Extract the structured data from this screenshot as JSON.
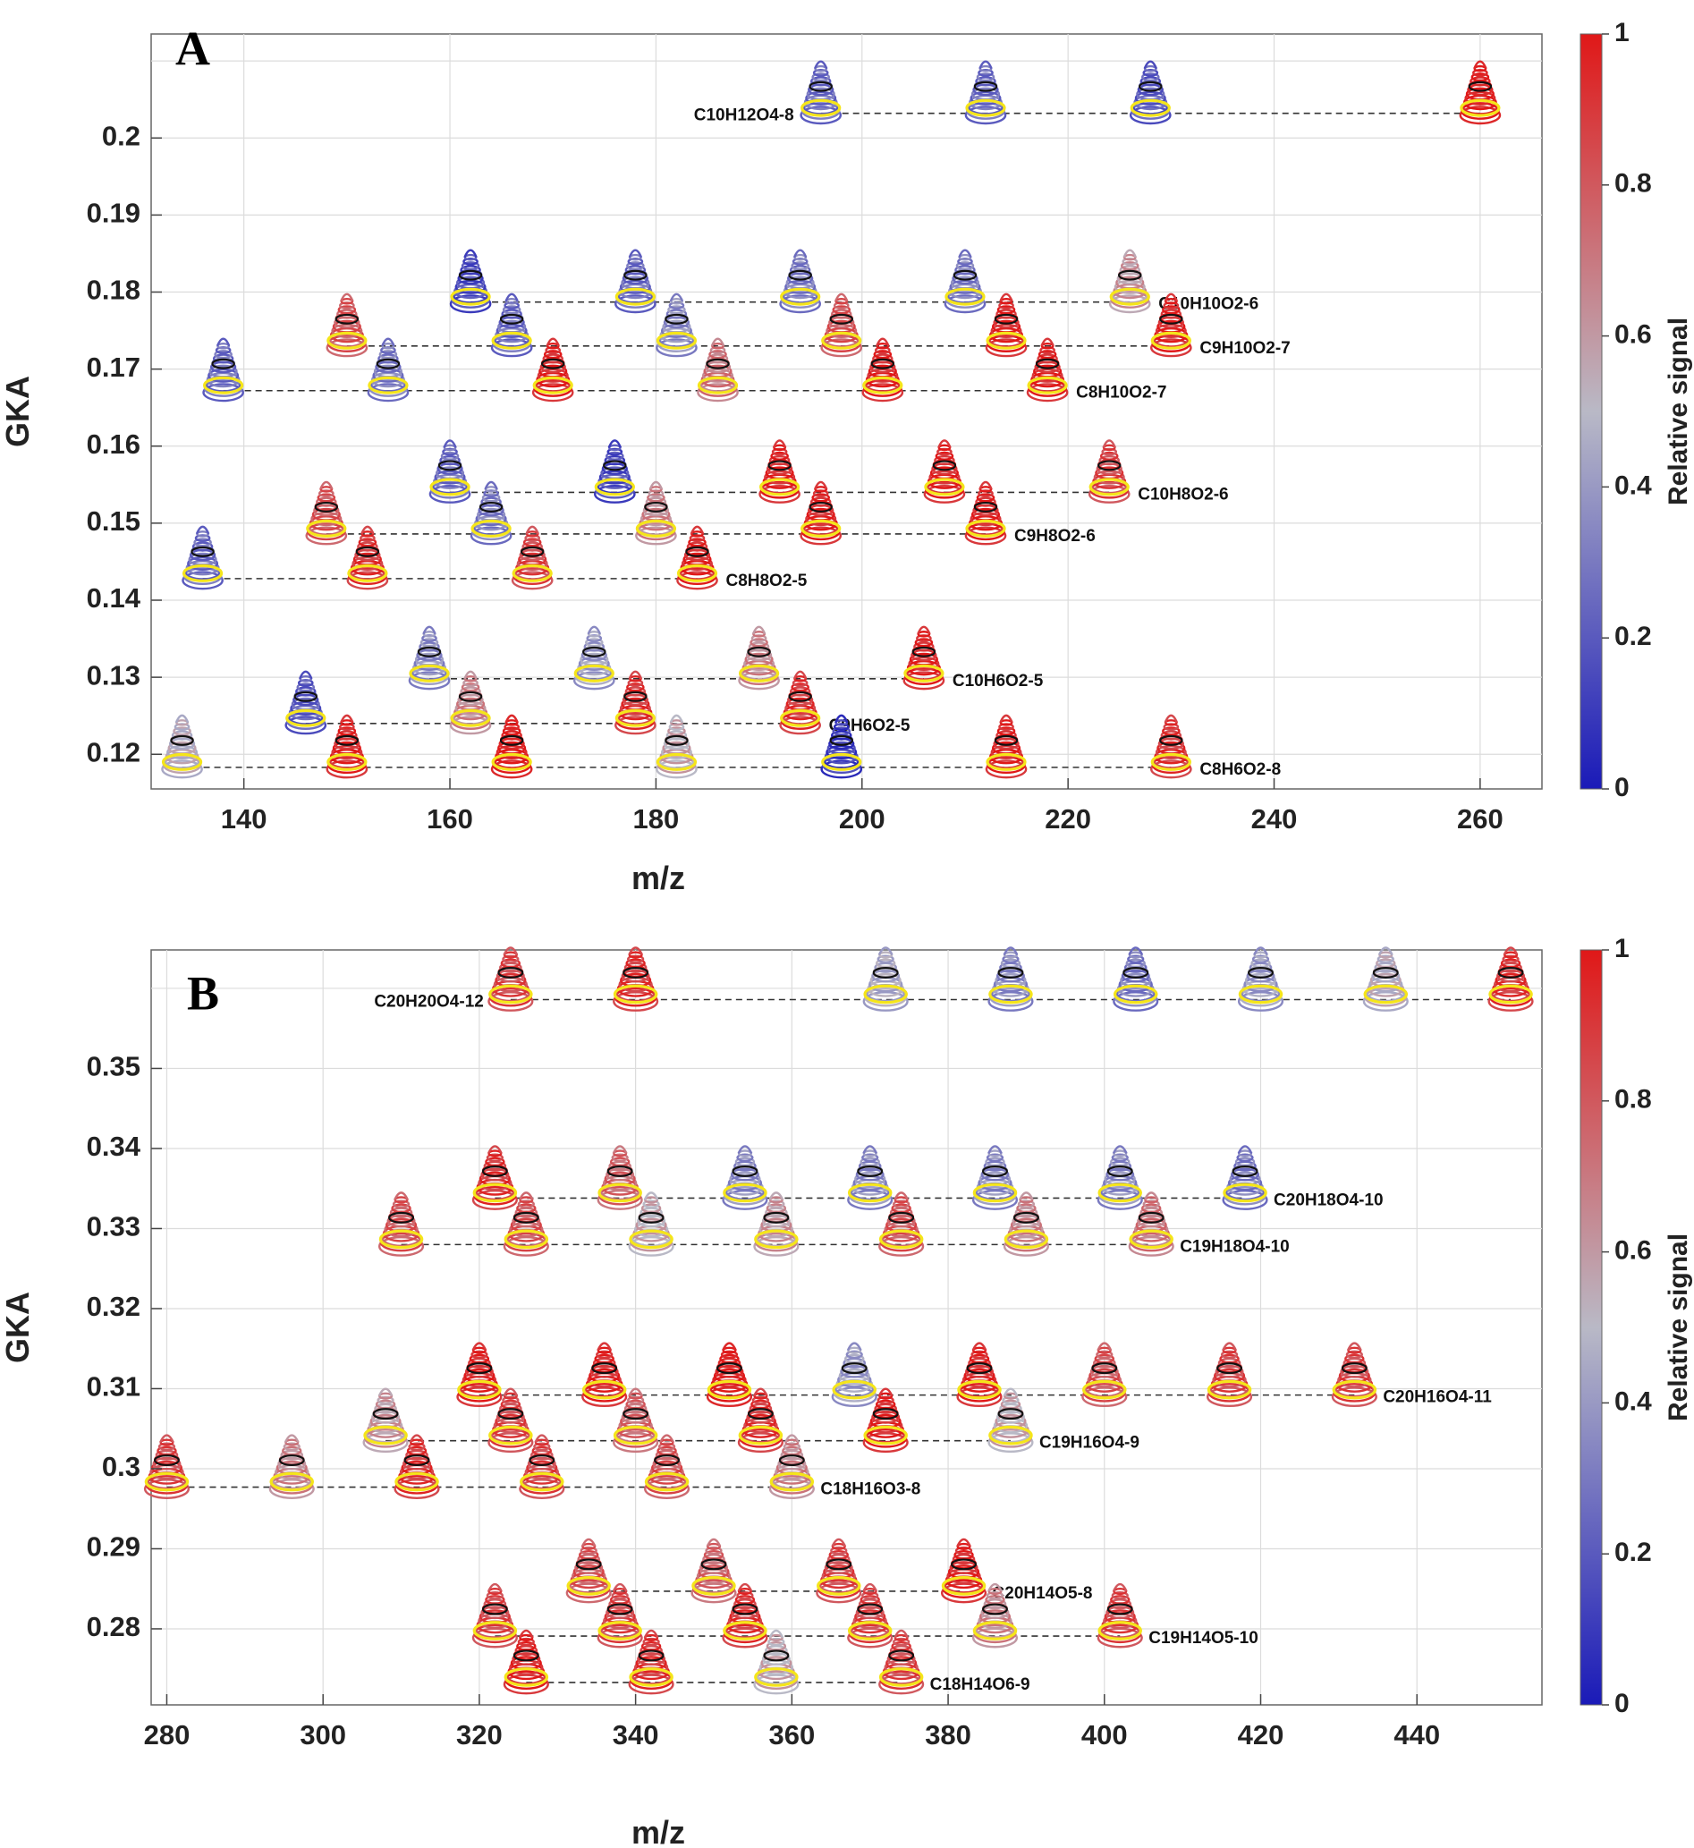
{
  "chart_data": [
    {
      "panel": "A",
      "type": "scatter",
      "xlabel": "m/z",
      "ylabel": "GKA",
      "xlim": [
        131,
        266
      ],
      "ylim": [
        0.1155,
        0.2135
      ],
      "x_ticks": [
        "140",
        "160",
        "180",
        "200",
        "220",
        "240",
        "260"
      ],
      "y_ticks": [
        "0.12",
        "0.13",
        "0.14",
        "0.15",
        "0.16",
        "0.17",
        "0.18",
        "0.19",
        "0.2"
      ],
      "grid": true,
      "colorbar": {
        "title": "Relative signal",
        "ticks": [
          "0",
          "0.2",
          "0.4",
          "0.6",
          "0.8",
          "1"
        ],
        "range": [
          0,
          1
        ],
        "colors": [
          "#1a1ab8",
          "#b9b9c6",
          "#e01818"
        ]
      },
      "series": [
        {
          "name": "C10H12O4-8",
          "y": 0.2032,
          "label_side": "left",
          "x": [
            196,
            212,
            228,
            260
          ],
          "signal": [
            0.2,
            0.2,
            0.15,
            0.95
          ]
        },
        {
          "name": "C10H10O2-6",
          "y": 0.1787,
          "label_side": "right",
          "x": [
            162,
            178,
            194,
            210,
            226
          ],
          "signal": [
            0.1,
            0.2,
            0.25,
            0.25,
            0.55
          ]
        },
        {
          "name": "C9H10O2-7",
          "y": 0.173,
          "label_side": "right",
          "x": [
            150,
            166,
            182,
            198,
            214,
            230
          ],
          "signal": [
            0.75,
            0.2,
            0.3,
            0.75,
            0.9,
            0.9
          ]
        },
        {
          "name": "C8H10O2-7",
          "y": 0.1672,
          "label_side": "right",
          "x": [
            138,
            154,
            170,
            186,
            202,
            218
          ],
          "signal": [
            0.2,
            0.25,
            0.9,
            0.65,
            0.9,
            0.9
          ]
        },
        {
          "name": "C10H8O2-6",
          "y": 0.154,
          "label_side": "right",
          "x": [
            160,
            176,
            192,
            208,
            224
          ],
          "signal": [
            0.2,
            0.1,
            0.9,
            0.9,
            0.8
          ]
        },
        {
          "name": "C9H8O2-6",
          "y": 0.1486,
          "label_side": "right",
          "x": [
            148,
            164,
            180,
            196,
            212
          ],
          "signal": [
            0.75,
            0.25,
            0.6,
            0.9,
            0.9
          ]
        },
        {
          "name": "C8H8O2-5",
          "y": 0.1428,
          "label_side": "right",
          "x": [
            136,
            152,
            168,
            184
          ],
          "signal": [
            0.2,
            0.85,
            0.8,
            0.9
          ]
        },
        {
          "name": "C10H6O2-5",
          "y": 0.1298,
          "label_side": "right",
          "x": [
            158,
            174,
            190,
            206
          ],
          "signal": [
            0.3,
            0.35,
            0.6,
            0.9
          ]
        },
        {
          "name": "C9H6O2-5",
          "y": 0.124,
          "label_side": "right",
          "x": [
            146,
            162,
            178,
            194
          ],
          "signal": [
            0.15,
            0.6,
            0.85,
            0.85
          ]
        },
        {
          "name": "C8H6O2-8",
          "y": 0.1183,
          "label_side": "right",
          "x": [
            134,
            150,
            166,
            182,
            198,
            214,
            230
          ],
          "signal": [
            0.45,
            0.9,
            0.95,
            0.5,
            0.05,
            0.9,
            0.85
          ]
        }
      ]
    },
    {
      "panel": "B",
      "type": "scatter",
      "xlabel": "m/z",
      "ylabel": "GKA",
      "xlim": [
        278,
        456
      ],
      "ylim": [
        0.2705,
        0.3648
      ],
      "x_ticks": [
        "280",
        "300",
        "320",
        "340",
        "360",
        "380",
        "400",
        "420",
        "440"
      ],
      "y_ticks": [
        "0.28",
        "0.29",
        "0.3",
        "0.31",
        "0.32",
        "0.33",
        "0.34",
        "0.35"
      ],
      "grid": true,
      "colorbar": {
        "title": "Relative signal",
        "ticks": [
          "0",
          "0.2",
          "0.4",
          "0.6",
          "0.8",
          "1"
        ],
        "range": [
          0,
          1
        ],
        "colors": [
          "#1a1ab8",
          "#b9b9c6",
          "#e01818"
        ]
      },
      "series": [
        {
          "name": "C20H20O4-12",
          "y": 0.3586,
          "label_side": "left",
          "x": [
            324,
            340,
            372,
            388,
            404,
            420,
            436,
            452
          ],
          "signal": [
            0.8,
            0.85,
            0.4,
            0.3,
            0.25,
            0.35,
            0.45,
            0.85
          ]
        },
        {
          "name": "C20H18O4-10",
          "y": 0.3338,
          "label_side": "right",
          "x": [
            322,
            338,
            354,
            370,
            386,
            402,
            418
          ],
          "signal": [
            0.85,
            0.7,
            0.3,
            0.3,
            0.3,
            0.3,
            0.25
          ]
        },
        {
          "name": "C19H18O4-10",
          "y": 0.328,
          "label_side": "right",
          "x": [
            310,
            326,
            342,
            358,
            374,
            390,
            406
          ],
          "signal": [
            0.75,
            0.75,
            0.5,
            0.55,
            0.75,
            0.6,
            0.65
          ]
        },
        {
          "name": "C20H16O4-11",
          "y": 0.3092,
          "label_side": "right",
          "x": [
            320,
            336,
            352,
            368,
            384,
            400,
            416,
            432
          ],
          "signal": [
            0.9,
            0.9,
            0.95,
            0.35,
            0.9,
            0.75,
            0.8,
            0.8
          ]
        },
        {
          "name": "C19H16O4-9",
          "y": 0.3035,
          "label_side": "right",
          "x": [
            308,
            324,
            340,
            356,
            372,
            388
          ],
          "signal": [
            0.55,
            0.8,
            0.7,
            0.85,
            0.9,
            0.5
          ]
        },
        {
          "name": "C18H16O3-8",
          "y": 0.2977,
          "label_side": "right",
          "x": [
            280,
            296,
            312,
            328,
            344,
            360
          ],
          "signal": [
            0.8,
            0.6,
            0.85,
            0.8,
            0.75,
            0.6
          ]
        },
        {
          "name": "C20H14O5-8",
          "y": 0.2847,
          "label_side": "right",
          "x": [
            334,
            350,
            366,
            382
          ],
          "signal": [
            0.75,
            0.7,
            0.8,
            0.9
          ]
        },
        {
          "name": "C19H14O5-10",
          "y": 0.2791,
          "label_side": "right",
          "x": [
            322,
            338,
            354,
            370,
            386,
            402
          ],
          "signal": [
            0.8,
            0.8,
            0.85,
            0.8,
            0.6,
            0.8
          ]
        },
        {
          "name": "C18H14O6-9",
          "y": 0.2733,
          "label_side": "right",
          "x": [
            326,
            342,
            358,
            374
          ],
          "signal": [
            0.9,
            0.85,
            0.5,
            0.8
          ]
        }
      ]
    }
  ]
}
